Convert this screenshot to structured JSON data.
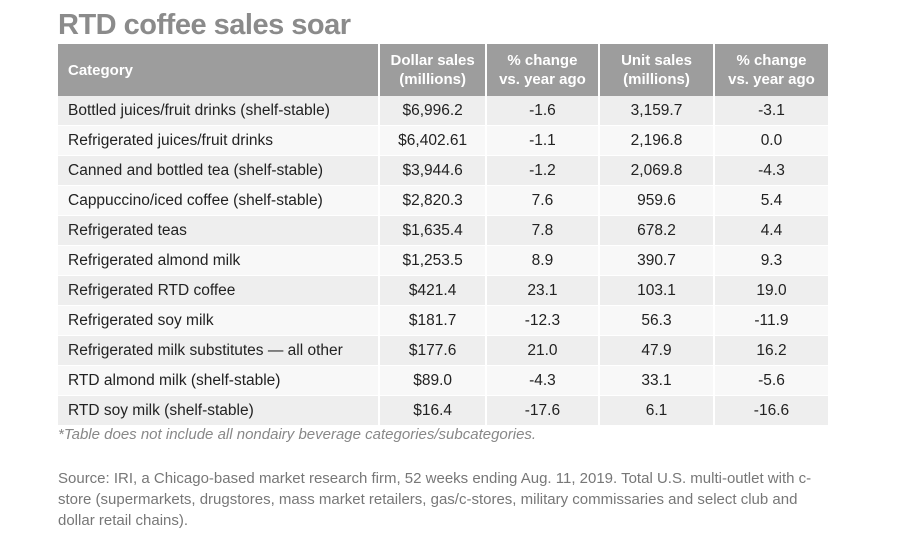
{
  "title": "RTD coffee sales soar",
  "table": {
    "header": [
      [
        "Category"
      ],
      [
        "Dollar sales",
        "(millions)"
      ],
      [
        "% change",
        "vs. year ago"
      ],
      [
        "Unit sales",
        "(millions)"
      ],
      [
        "% change",
        "vs. year ago"
      ]
    ],
    "rows": [
      [
        "Bottled juices/fruit drinks (shelf-stable)",
        "$6,996.2",
        "-1.6",
        "3,159.7",
        "-3.1"
      ],
      [
        "Refrigerated juices/fruit drinks",
        "$6,402.61",
        "-1.1",
        "2,196.8",
        "0.0"
      ],
      [
        "Canned and bottled tea (shelf-stable)",
        "$3,944.6",
        "-1.2",
        "2,069.8",
        "-4.3"
      ],
      [
        "Cappuccino/iced coffee (shelf-stable)",
        "$2,820.3",
        "7.6",
        "959.6",
        "5.4"
      ],
      [
        "Refrigerated teas",
        "$1,635.4",
        "7.8",
        "678.2",
        "4.4"
      ],
      [
        "Refrigerated almond milk",
        "$1,253.5",
        "8.9",
        "390.7",
        "9.3"
      ],
      [
        "Refrigerated RTD coffee",
        "$421.4",
        "23.1",
        "103.1",
        "19.0"
      ],
      [
        "Refrigerated soy milk",
        "$181.7",
        "-12.3",
        "56.3",
        "-11.9"
      ],
      [
        "Refrigerated milk substitutes — all other",
        "$177.6",
        "21.0",
        "47.9",
        "16.2"
      ],
      [
        "RTD almond milk (shelf-stable)",
        "$89.0",
        "-4.3",
        "33.1",
        "-5.6"
      ],
      [
        "RTD soy milk (shelf-stable)",
        "$16.4",
        "-17.6",
        "6.1",
        "-16.6"
      ]
    ]
  },
  "footnote": "*Table does not include all nondairy beverage categories/subcategories.",
  "source": "Source: IRI, a Chicago-based market research firm, 52 weeks ending Aug. 11, 2019. Total U.S. multi-outlet with c-store (supermarkets, drugstores, mass market retailers, gas/c-stores, military commissaries and select club and dollar retail chains)."
}
